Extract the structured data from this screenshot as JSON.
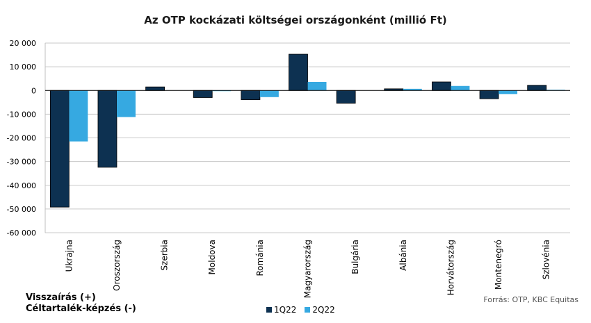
{
  "chart_data": {
    "type": "bar",
    "title": "Az OTP kockázati költségei országonként (millió Ft)",
    "categories": [
      "Ukrajna",
      "Oroszország",
      "Szerbia",
      "Moldova",
      "Románia",
      "Magyarország",
      "Bulgária",
      "Albánia",
      "Horvátország",
      "Montenegró",
      "Szlovénia"
    ],
    "series": [
      {
        "name": "1Q22",
        "color": "#0d3151",
        "values": [
          -49200,
          -32400,
          1500,
          -3000,
          -3900,
          15300,
          -5400,
          700,
          3600,
          -3500,
          2200
        ]
      },
      {
        "name": "2Q22",
        "color": "#36a9e1",
        "values": [
          -21500,
          -11200,
          0,
          -300,
          -2800,
          3600,
          0,
          700,
          1900,
          -1500,
          300
        ]
      }
    ],
    "ylim": [
      -60000,
      20000
    ],
    "yticks": [
      20000,
      10000,
      0,
      -10000,
      -20000,
      -30000,
      -40000,
      -50000,
      -60000
    ],
    "ytick_labels": [
      "20 000",
      "10 000",
      "0",
      "-10 000",
      "-20 000",
      "-30 000",
      "-40 000",
      "-50 000",
      "-60 000"
    ],
    "grid": true,
    "legend_position": "bottom"
  },
  "notes": {
    "line1": "Visszaírás (+)",
    "line2": "Céltartalék-képzés  (-)"
  },
  "source": "Forrás: OTP, KBC Equitas"
}
